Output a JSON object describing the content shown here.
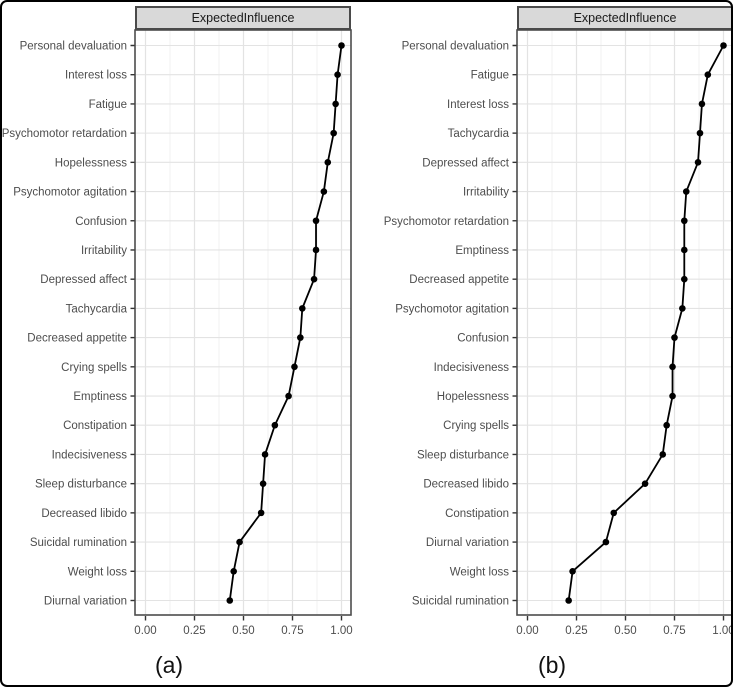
{
  "chart_data": [
    {
      "type": "line",
      "panel": "a",
      "title": "ExpectedInfluence",
      "caption": "(a)",
      "orientation": "horizontal-dotplot",
      "xlabel": "",
      "ylabel": "",
      "xlim": [
        0.0,
        1.0
      ],
      "x_ticks": [
        0.0,
        0.25,
        0.5,
        0.75,
        1.0
      ],
      "x_tick_labels": [
        "0.00",
        "0.25",
        "0.50",
        "0.75",
        "1.00"
      ],
      "x_minor_ticks": [
        0.125,
        0.375,
        0.625,
        0.875
      ],
      "grid": true,
      "legend": "none",
      "categories": [
        "Personal devaluation",
        "Interest loss",
        "Fatigue",
        "Psychomotor retardation",
        "Hopelessness",
        "Psychomotor agitation",
        "Confusion",
        "Irritability",
        "Depressed affect",
        "Tachycardia",
        "Decreased appetite",
        "Crying spells",
        "Emptiness",
        "Constipation",
        "Indecisiveness",
        "Sleep disturbance",
        "Decreased libido",
        "Suicidal rumination",
        "Weight loss",
        "Diurnal variation"
      ],
      "values": [
        1.0,
        0.98,
        0.97,
        0.96,
        0.93,
        0.91,
        0.87,
        0.87,
        0.86,
        0.8,
        0.79,
        0.76,
        0.73,
        0.66,
        0.61,
        0.6,
        0.59,
        0.48,
        0.45,
        0.43
      ]
    },
    {
      "type": "line",
      "panel": "b",
      "title": "ExpectedInfluence",
      "caption": "(b)",
      "orientation": "horizontal-dotplot",
      "xlabel": "",
      "ylabel": "",
      "xlim": [
        0.0,
        1.0
      ],
      "x_ticks": [
        0.0,
        0.25,
        0.5,
        0.75,
        1.0
      ],
      "x_tick_labels": [
        "0.00",
        "0.25",
        "0.50",
        "0.75",
        "1.00"
      ],
      "x_minor_ticks": [
        0.125,
        0.375,
        0.625,
        0.875
      ],
      "grid": true,
      "legend": "none",
      "categories": [
        "Personal devaluation",
        "Fatigue",
        "Interest loss",
        "Tachycardia",
        "Depressed affect",
        "Irritability",
        "Psychomotor retardation",
        "Emptiness",
        "Decreased appetite",
        "Psychomotor agitation",
        "Confusion",
        "Indecisiveness",
        "Hopelessness",
        "Crying spells",
        "Sleep disturbance",
        "Decreased libido",
        "Constipation",
        "Diurnal variation",
        "Weight loss",
        "Suicidal rumination"
      ],
      "values": [
        1.0,
        0.92,
        0.89,
        0.88,
        0.87,
        0.81,
        0.8,
        0.8,
        0.8,
        0.79,
        0.75,
        0.74,
        0.74,
        0.71,
        0.69,
        0.6,
        0.44,
        0.4,
        0.23,
        0.21
      ]
    }
  ],
  "colors": {
    "figure_border": "#000000",
    "panel_border": "#4d4d4d",
    "strip_bg": "#d9d9d9",
    "strip_border": "#4a4a4a",
    "grid_major": "#e3e3e3",
    "grid_minor": "#f0f0f0",
    "axis_text": "#4d4d4d",
    "tick_mark": "#333333",
    "line": "#000000",
    "point": "#000000",
    "background": "#ffffff"
  }
}
